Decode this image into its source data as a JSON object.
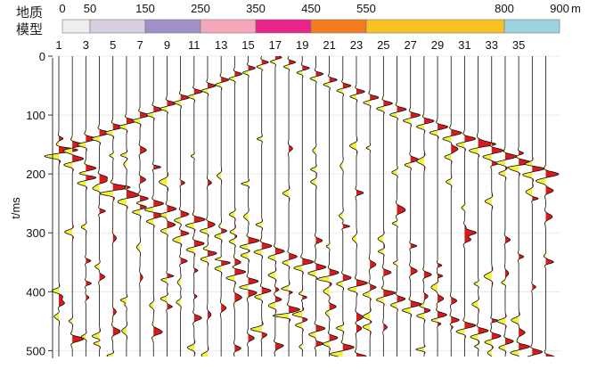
{
  "model": {
    "title_lines": [
      "地质",
      "模型"
    ],
    "unit": "m",
    "boundaries": [
      {
        "pos": 0,
        "label": "0"
      },
      {
        "pos": 50,
        "label": "50"
      },
      {
        "pos": 150,
        "label": "150"
      },
      {
        "pos": 250,
        "label": "250"
      },
      {
        "pos": 350,
        "label": "350"
      },
      {
        "pos": 450,
        "label": "450"
      },
      {
        "pos": 550,
        "label": "550"
      },
      {
        "pos": 800,
        "label": "800"
      },
      {
        "pos": 900,
        "label": "900"
      }
    ],
    "layers": [
      {
        "from": 0,
        "to": 50,
        "color": "#eeeeee"
      },
      {
        "from": 50,
        "to": 150,
        "color": "#d7cfe1"
      },
      {
        "from": 150,
        "to": 250,
        "color": "#a090c8"
      },
      {
        "from": 250,
        "to": 350,
        "color": "#f4a7b9"
      },
      {
        "from": 350,
        "to": 450,
        "color": "#e8238a"
      },
      {
        "from": 450,
        "to": 550,
        "color": "#f47b20"
      },
      {
        "from": 550,
        "to": 800,
        "color": "#f9c123"
      },
      {
        "from": 800,
        "to": 900,
        "color": "#9bd3e0"
      }
    ]
  },
  "chart_data": {
    "type": "seismic wiggle traces",
    "ylabel": "t/ms",
    "ylim": [
      0,
      510
    ],
    "y_ticks": [
      0,
      100,
      200,
      300,
      400,
      500
    ],
    "trace_count": 37,
    "trace_labels": [
      "1",
      "3",
      "5",
      "7",
      "9",
      "11",
      "13",
      "15",
      "17",
      "19",
      "21",
      "23",
      "25",
      "27",
      "29",
      "31",
      "33",
      "35"
    ],
    "positive_fill_color": "#d91a1a",
    "negative_fill_color": "#f2f23a",
    "trace_line_color": "#111111",
    "events": [
      {
        "name": "direct",
        "type": "hyperbola",
        "apex_trace": 17,
        "t0": 2,
        "velocity_traces_per_ms": 0.1,
        "side": "both"
      },
      {
        "name": "reflection_a",
        "type": "linear",
        "from_trace": 1,
        "t_start": 158,
        "slope_ms_per_trace": 16,
        "side": "right"
      },
      {
        "name": "reflection_b",
        "type": "linear",
        "from_trace": 3,
        "t_start": 205,
        "slope_ms_per_trace": 9,
        "side": "right"
      }
    ]
  }
}
